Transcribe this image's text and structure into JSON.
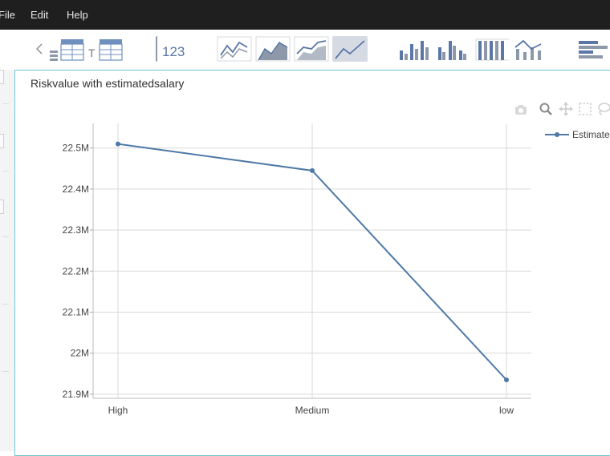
{
  "menu": {
    "file": "File",
    "edit": "Edit",
    "help": "Help"
  },
  "toolbar": {
    "number_label": "123"
  },
  "panel": {
    "title": "Riskvalue with estimatedsalary"
  },
  "colors": {
    "line": "#4e79a7",
    "accent": "#6fc5d3",
    "menubar": "#1f1f1f"
  },
  "icons": [
    "back-icon",
    "table-icon",
    "pivot-table-icon",
    "number-icon",
    "line-chart-icon",
    "area-chart-icon",
    "stacked-area-icon",
    "filled-line-icon",
    "bar-chart-icon",
    "grouped-bar-icon",
    "stacked-bar-icon",
    "combo-chart-icon",
    "horizontal-bar-icon",
    "camera-icon",
    "zoom-icon",
    "pan-icon",
    "box-select-icon",
    "lasso-icon"
  ],
  "chart_data": {
    "type": "line",
    "categories": [
      "High",
      "Medium",
      "low"
    ],
    "series": [
      {
        "name": "Estimate",
        "values": [
          22510000,
          22445000,
          21935000
        ]
      }
    ],
    "yticks": [
      21900000,
      22000000,
      22100000,
      22200000,
      22300000,
      22400000,
      22500000
    ],
    "ytick_labels": [
      "21.9M",
      "22M",
      "22.1M",
      "22.2M",
      "22.3M",
      "22.4M",
      "22.5M"
    ],
    "ylim": [
      21890000,
      22560000
    ],
    "grid": true,
    "legend_position": "top-right"
  }
}
